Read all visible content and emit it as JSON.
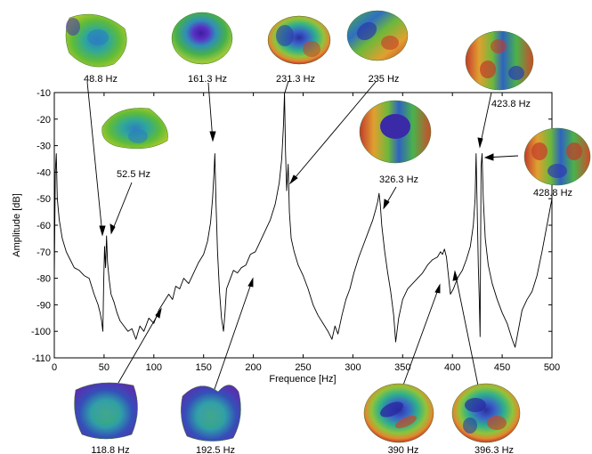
{
  "chart_data": {
    "type": "line",
    "title": "",
    "xlabel": "Frequence [Hz]",
    "ylabel": "Amplitude [dB]",
    "xlim": [
      0,
      500
    ],
    "ylim": [
      -110,
      -10
    ],
    "xticks": [
      "0",
      "50",
      "100",
      "150",
      "200",
      "250",
      "300",
      "350",
      "400",
      "450",
      "500"
    ],
    "yticks": [
      "-10",
      "-20",
      "-30",
      "-40",
      "-50",
      "-60",
      "-70",
      "-80",
      "-90",
      "-100",
      "-110"
    ],
    "grid": false,
    "series": [
      {
        "name": "",
        "x": [
          0,
          1,
          2,
          3,
          5,
          8,
          12,
          16,
          20,
          25,
          30,
          35,
          40,
          44,
          46,
          47.5,
          48.8,
          49.6,
          50.5,
          51.5,
          52.5,
          53.5,
          55,
          57,
          60,
          63,
          66,
          70,
          74,
          78,
          82,
          86,
          90,
          95,
          100,
          105,
          110,
          115,
          118.8,
          122,
          126,
          130,
          135,
          140,
          145,
          150,
          154,
          157,
          159,
          160.5,
          161.3,
          162.5,
          164,
          166,
          168,
          170,
          171.5,
          173,
          176,
          180,
          184,
          188,
          192.5,
          197,
          202,
          207,
          212,
          217,
          222,
          226,
          228.5,
          230.3,
          231.3,
          232.3,
          233.5,
          235,
          236.2,
          238,
          241,
          245,
          250,
          255,
          260,
          265,
          270,
          275,
          279,
          282,
          285,
          289,
          293,
          297,
          301,
          306,
          311,
          316,
          320,
          323,
          325,
          326.3,
          327.5,
          329,
          332,
          335,
          338,
          341,
          343,
          346,
          350,
          355,
          360,
          365,
          370,
          375,
          380,
          385,
          388,
          390,
          392,
          394,
          396.3,
          398,
          401,
          405,
          410,
          414,
          418,
          421,
          422.8,
          423.8,
          424.8,
          426,
          427,
          427.8,
          428.8,
          429.8,
          431,
          433,
          436,
          440,
          445,
          450,
          455,
          460,
          463,
          466,
          470,
          475,
          480,
          485,
          490,
          495,
          500
        ],
        "y": [
          -80,
          -40,
          -33,
          -50,
          -58,
          -65,
          -70,
          -73,
          -76,
          -77,
          -79,
          -80,
          -86,
          -90,
          -93,
          -96,
          -100,
          -82,
          -68,
          -76,
          -64,
          -74,
          -80,
          -86,
          -89,
          -93,
          -96,
          -98,
          -100,
          -99,
          -103,
          -98,
          -100,
          -95,
          -97,
          -92,
          -89,
          -86,
          -88,
          -83,
          -84,
          -80,
          -82,
          -78,
          -74,
          -71,
          -66,
          -59,
          -50,
          -40,
          -33,
          -52,
          -70,
          -85,
          -95,
          -100,
          -93,
          -84,
          -81,
          -77,
          -78,
          -76,
          -75,
          -71,
          -70,
          -66,
          -62,
          -58,
          -52,
          -44,
          -35,
          -22,
          -10,
          -32,
          -47,
          -37,
          -55,
          -65,
          -70,
          -75,
          -79,
          -84,
          -90,
          -94,
          -97,
          -100,
          -103,
          -98,
          -101,
          -94,
          -88,
          -84,
          -78,
          -72,
          -67,
          -62,
          -58,
          -54,
          -51,
          -48,
          -52,
          -60,
          -70,
          -78,
          -85,
          -94,
          -104,
          -95,
          -88,
          -84,
          -82,
          -80,
          -78,
          -75,
          -73,
          -72,
          -70,
          -71,
          -69,
          -72,
          -80,
          -86,
          -84,
          -80,
          -77,
          -73,
          -68,
          -60,
          -50,
          -33,
          -52,
          -75,
          -88,
          -102,
          -38,
          -33,
          -50,
          -65,
          -75,
          -82,
          -88,
          -93,
          -97,
          -103,
          -106,
          -100,
          -92,
          -88,
          -85,
          -79,
          -70,
          -60,
          -50
        ]
      }
    ],
    "annotations": [
      {
        "label": "48.8 Hz",
        "x": 48.8,
        "y": -66
      },
      {
        "label": "52.5 Hz",
        "x": 52.5,
        "y": -64
      },
      {
        "label": "118.8 Hz",
        "x": 118.8,
        "y": -87
      },
      {
        "label": "161.3 Hz",
        "x": 161.3,
        "y": -35
      },
      {
        "label": "192.5 Hz",
        "x": 192.5,
        "y": -79
      },
      {
        "label": "231.3 Hz",
        "x": 231.3,
        "y": -11
      },
      {
        "label": "235 Hz",
        "x": 235,
        "y": -47
      },
      {
        "label": "326.3 Hz",
        "x": 326.3,
        "y": -50
      },
      {
        "label": "390 Hz",
        "x": 390,
        "y": -72
      },
      {
        "label": "396.3 Hz",
        "x": 396.3,
        "y": -73
      },
      {
        "label": "423.8 Hz",
        "x": 423.8,
        "y": -35
      },
      {
        "label": "428.8 Hz",
        "x": 428.8,
        "y": -46
      }
    ]
  }
}
